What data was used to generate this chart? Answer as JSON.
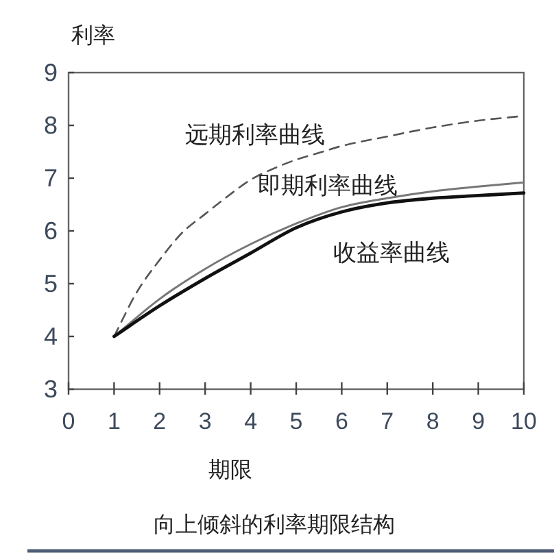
{
  "chart_data": {
    "type": "line",
    "title": "向上倾斜的利率期限结构",
    "xlabel": "期限",
    "ylabel": "利率",
    "xlim": [
      0,
      10
    ],
    "ylim": [
      3,
      9
    ],
    "xticks": [
      0,
      1,
      2,
      3,
      4,
      5,
      6,
      7,
      8,
      9,
      10
    ],
    "yticks": [
      3,
      4,
      5,
      6,
      7,
      8,
      9
    ],
    "series": [
      {
        "name": "远期利率曲线",
        "color": "#555555",
        "line_style": "dashed",
        "x": [
          1,
          1.5,
          2,
          2.5,
          3,
          3.5,
          4,
          4.5,
          5,
          5.5,
          6,
          7,
          8,
          9,
          10
        ],
        "values": [
          4,
          4.84,
          5.45,
          5.97,
          6.32,
          6.66,
          6.97,
          7.18,
          7.35,
          7.48,
          7.61,
          7.79,
          7.96,
          8.09,
          8.18
        ]
      },
      {
        "name": "即期利率曲线",
        "color": "#777777",
        "line_style": "solid",
        "x": [
          1,
          2,
          3,
          4,
          5,
          6,
          7,
          8,
          9,
          10
        ],
        "values": [
          4,
          4.71,
          5.28,
          5.75,
          6.14,
          6.45,
          6.62,
          6.75,
          6.84,
          6.92
        ]
      },
      {
        "name": "收益率曲线",
        "color": "#111111",
        "line_style": "solid",
        "x": [
          1,
          2,
          3,
          4,
          5,
          6,
          7,
          8,
          9,
          10
        ],
        "values": [
          4,
          4.58,
          5.1,
          5.58,
          6.06,
          6.36,
          6.53,
          6.62,
          6.67,
          6.72
        ]
      }
    ]
  }
}
